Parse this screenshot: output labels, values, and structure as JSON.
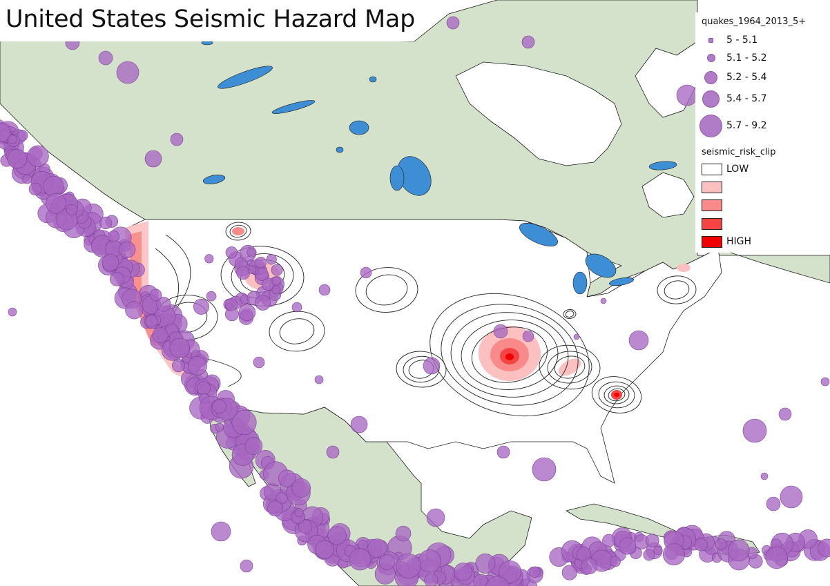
{
  "title": "United States Seismic Hazard Map",
  "colors": {
    "ocean": "#ffffff",
    "land": "#d4e2cb",
    "lakes": "#3d8ed4",
    "quake_fill": "#a868c2",
    "quake_stroke": "#7b3f98",
    "risk": [
      "#ffffff",
      "#fcc0c0",
      "#f88a8a",
      "#f44444",
      "#f00000"
    ]
  },
  "legend": {
    "quakes": {
      "layer_name": "quakes_1964_2013_5+",
      "classes": [
        "5 - 5.1",
        "5.1 - 5.2",
        "5.2 - 5.4",
        "5.4 - 5.7",
        "5.7 - 9.2"
      ]
    },
    "risk": {
      "layer_name": "seismic_risk_clip",
      "classes": [
        "LOW",
        "",
        "",
        "",
        "HIGH"
      ]
    }
  }
}
